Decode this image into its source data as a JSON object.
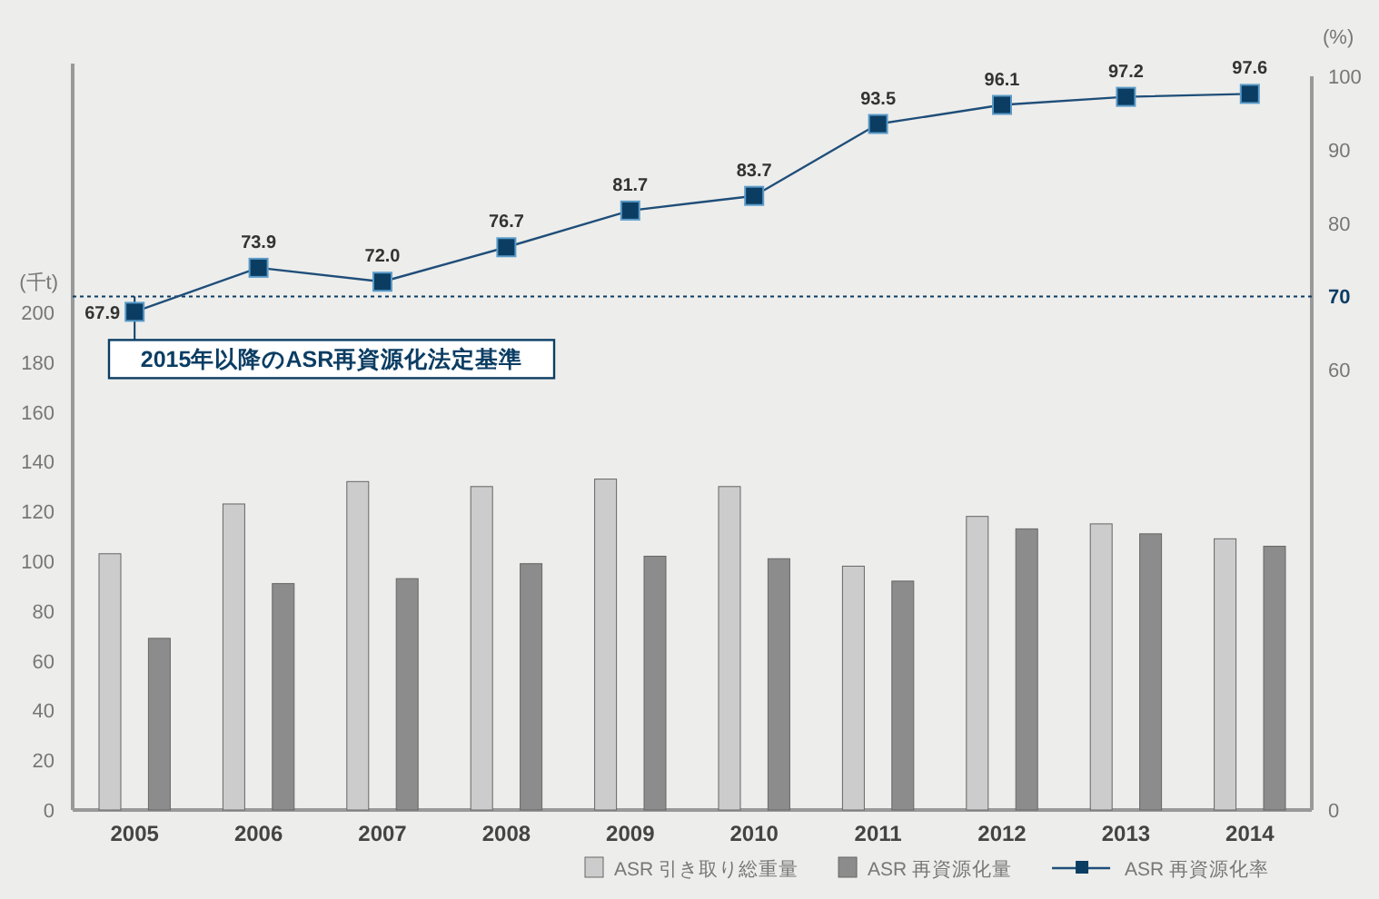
{
  "chart_data": {
    "type": "bar",
    "categories": [
      "2005",
      "2006",
      "2007",
      "2008",
      "2009",
      "2010",
      "2011",
      "2012",
      "2013",
      "2014"
    ],
    "series": [
      {
        "name": "ASR 引き取り総重量",
        "color": "#cccccc",
        "values": [
          103,
          123,
          132,
          130,
          133,
          130,
          98,
          118,
          115,
          109
        ]
      },
      {
        "name": "ASR 再資源化量",
        "color": "#8c8c8c",
        "values": [
          69,
          91,
          93,
          99,
          102,
          101,
          92,
          113,
          111,
          106
        ]
      },
      {
        "name": "ASR 再資源化率",
        "type": "line",
        "axis": "y2",
        "color": "#1f4e79",
        "marker": "square",
        "values": [
          67.9,
          73.9,
          72.0,
          76.7,
          81.7,
          83.7,
          93.5,
          96.1,
          97.2,
          97.6
        ],
        "value_labels": [
          "67.9",
          "73.9",
          "72.0",
          "76.7",
          "81.7",
          "83.7",
          "93.5",
          "96.1",
          "97.2",
          "97.6"
        ]
      }
    ],
    "ylabel": "(千t)",
    "y2label": "(%)",
    "ylim": [
      0,
      300
    ],
    "yticks": [
      0,
      20,
      40,
      60,
      80,
      100,
      120,
      140,
      160,
      180,
      200
    ],
    "y2lim": [
      0,
      100
    ],
    "y2ticks": [
      0,
      60,
      70,
      80,
      90,
      100
    ],
    "ref_lines": [
      {
        "axis": "y2",
        "value": 70,
        "label": "2015年以降のASR再資源化法定基準",
        "color": "#0b3d63",
        "line_style": "dotted"
      }
    ],
    "legend": "bottom"
  }
}
